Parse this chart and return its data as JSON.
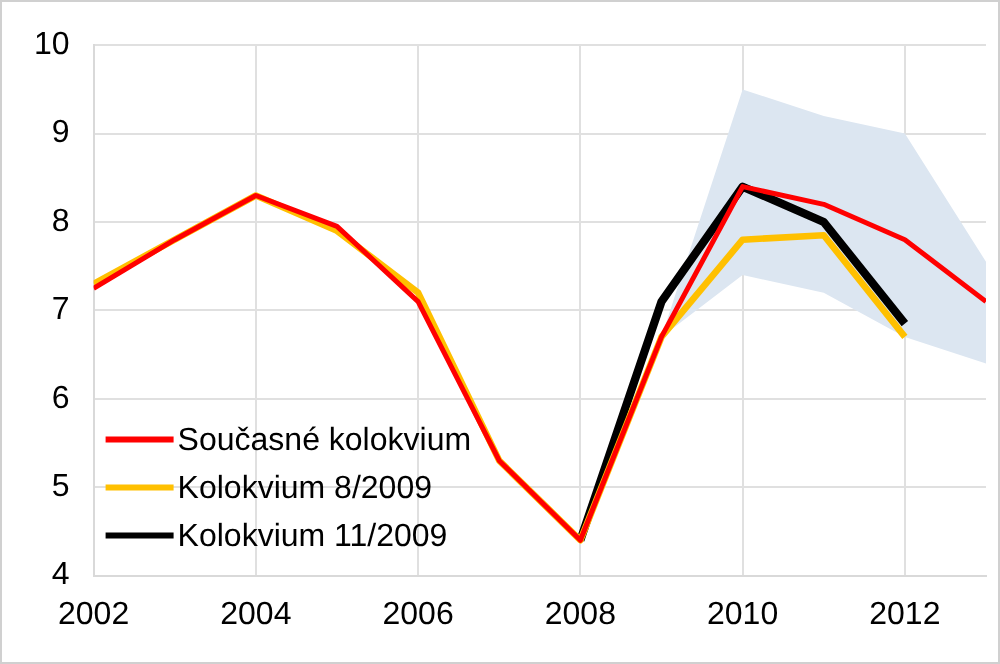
{
  "chart_data": {
    "type": "line",
    "x": [
      2002,
      2003,
      2004,
      2005,
      2006,
      2007,
      2008,
      2009,
      2010,
      2011,
      2012,
      2013
    ],
    "series": [
      {
        "name": "Současné kolokvium",
        "color": "#ff0000",
        "values": [
          7.25,
          7.8,
          8.3,
          7.95,
          7.1,
          5.3,
          4.4,
          6.7,
          8.4,
          8.2,
          7.8,
          7.1
        ],
        "lower": [
          null,
          null,
          null,
          null,
          null,
          null,
          null,
          6.7,
          7.4,
          7.2,
          6.7,
          6.4
        ],
        "upper": [
          null,
          null,
          null,
          null,
          null,
          null,
          null,
          6.7,
          9.5,
          9.2,
          9.0,
          7.55
        ]
      },
      {
        "name": "Kolokvium 8/2009",
        "color": "#ffc000",
        "values": [
          7.3,
          7.8,
          8.3,
          7.9,
          7.2,
          5.3,
          4.4,
          6.7,
          7.8,
          7.85,
          6.7,
          null
        ]
      },
      {
        "name": "Kolokvium 11/2009",
        "color": "#000000",
        "values": [
          null,
          null,
          null,
          null,
          null,
          null,
          4.4,
          7.1,
          8.4,
          8.0,
          6.85,
          null
        ]
      }
    ],
    "xlim": [
      2002,
      2013
    ],
    "xticks": [
      2002,
      2004,
      2006,
      2008,
      2010,
      2012
    ],
    "ylim": [
      4,
      10
    ],
    "yticks": [
      4,
      5,
      6,
      7,
      8,
      9,
      10
    ],
    "grid": true,
    "legend": "bottom left",
    "marker": "none",
    "line_style": "solid"
  }
}
